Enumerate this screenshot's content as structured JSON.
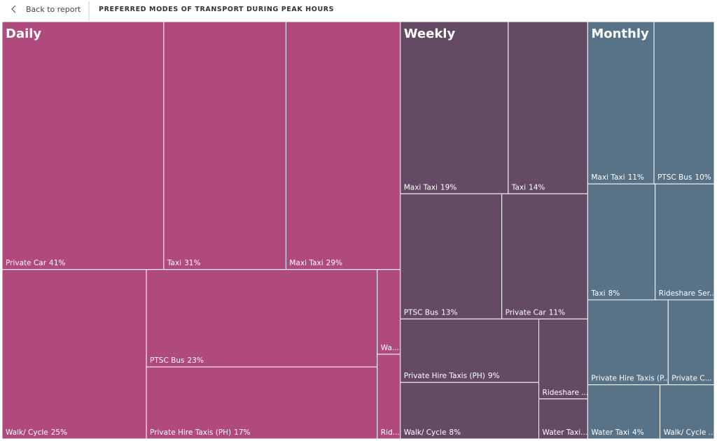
{
  "header": {
    "back": "Back to report",
    "title": "PREFERRED MODES OF TRANSPORT DURING PEAK HOURS"
  },
  "chart_data": {
    "type": "treemap",
    "groups": [
      {
        "name": "Daily",
        "color": "#b04a7c",
        "categories": [
          "Private Car",
          "Taxi",
          "Maxi Taxi",
          "Walk/ Cycle",
          "PTSC Bus",
          "Private Hire Taxis (PH)",
          "Wa...",
          "Rid..."
        ],
        "values": [
          41,
          31,
          29,
          25,
          23,
          17,
          2,
          2
        ],
        "value_labels": [
          "41%",
          "31%",
          "29%",
          "25%",
          "23%",
          "17%",
          null,
          null
        ]
      },
      {
        "name": "Weekly",
        "color": "#644a63",
        "categories": [
          "Maxi Taxi",
          "Taxi",
          "PTSC Bus",
          "Private Car",
          "Private Hire Taxis (PH)",
          "Walk/ Cycle",
          "Rideshare ...",
          "Water Taxi..."
        ],
        "values": [
          19,
          14,
          13,
          11,
          9,
          8,
          4,
          2
        ],
        "value_labels": [
          "19%",
          "14%",
          "13%",
          "11%",
          "9%",
          "8%",
          null,
          null
        ]
      },
      {
        "name": "Monthly",
        "color": "#587388",
        "categories": [
          "Maxi Taxi",
          "PTSC Bus",
          "Taxi",
          "Rideshare Ser...",
          "Private Hire Taxis (P...",
          "Private C...",
          "Water Taxi",
          "Walk/ Cycle ..."
        ],
        "values": [
          11,
          10,
          8,
          7,
          7,
          4,
          4,
          3
        ],
        "value_labels": [
          "11%",
          "10%",
          "8%",
          null,
          null,
          null,
          "4%",
          null
        ]
      }
    ]
  }
}
